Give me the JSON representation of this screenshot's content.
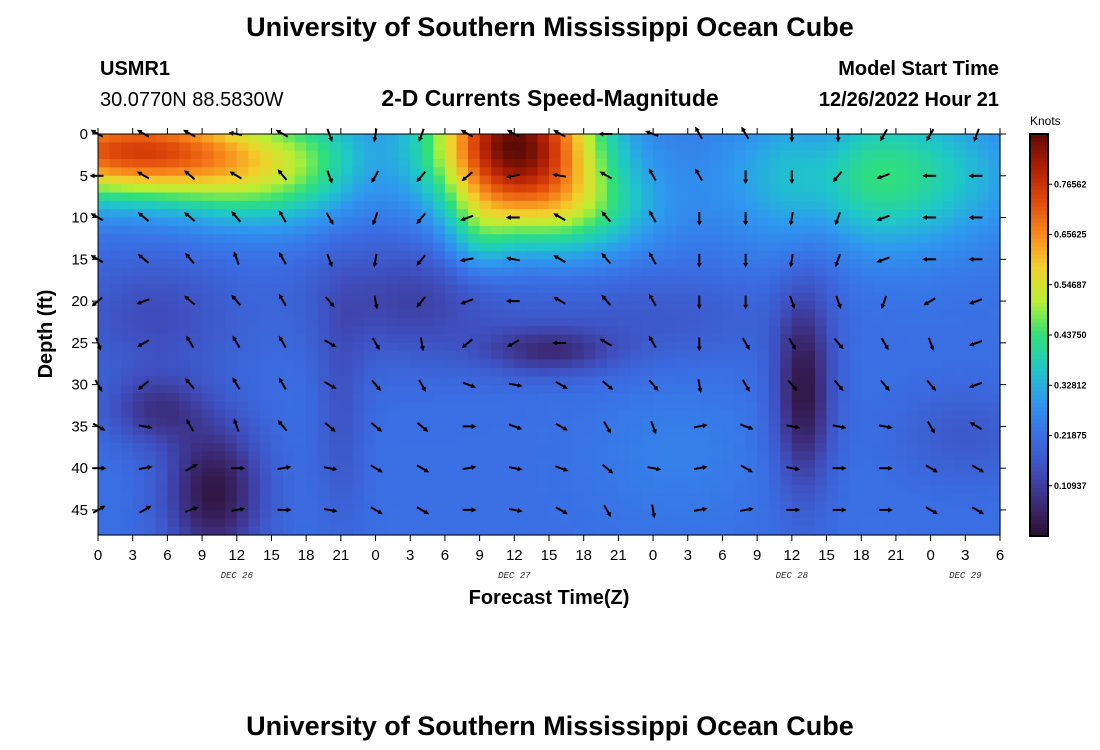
{
  "header": {
    "title": "University of Southern Mississippi Ocean Cube",
    "station_id": "USMR1",
    "coordinates": "30.0770N  88.5830W",
    "plot_title": "2-D Currents Speed-Magnitude",
    "model_start_label": "Model Start Time",
    "model_start_value": "12/26/2022 Hour 21"
  },
  "footer": {
    "title": "University of Southern Mississippi Ocean Cube"
  },
  "colors": {
    "scale": [
      "#2c0f30",
      "#3d2b7a",
      "#3f4fbf",
      "#3a6fe4",
      "#2f97f0",
      "#1ec8c8",
      "#2fe07a",
      "#b7f033",
      "#f2d12c",
      "#f98a1c",
      "#e04a0a",
      "#b01e04",
      "#5d0b05"
    ],
    "arrow": "#000000"
  },
  "chart_data": {
    "type": "heatmap",
    "title": "2-D Currents Speed-Magnitude",
    "xlabel": "Forecast Time(Z)",
    "ylabel": "Depth (ft)",
    "x_unit": "forecast hours from 12/26/2022 00Z",
    "xlim": [
      0,
      78
    ],
    "ylim": [
      48,
      0
    ],
    "x_ticks": [
      0,
      3,
      6,
      9,
      12,
      15,
      18,
      21,
      24,
      27,
      30,
      33,
      36,
      39,
      42,
      45,
      48,
      51,
      54,
      57,
      60,
      63,
      66,
      69,
      72,
      75,
      78
    ],
    "x_tick_labels": [
      "0",
      "3",
      "6",
      "9",
      "12",
      "15",
      "18",
      "21",
      "0",
      "3",
      "6",
      "9",
      "12",
      "15",
      "18",
      "21",
      "0",
      "3",
      "6",
      "9",
      "12",
      "15",
      "18",
      "21",
      "0",
      "3",
      "6"
    ],
    "day_labels": [
      {
        "label": "DEC 26",
        "x": 12
      },
      {
        "label": "DEC 27",
        "x": 36
      },
      {
        "label": "DEC 28",
        "x": 60
      },
      {
        "label": "DEC 29",
        "x": 75
      }
    ],
    "y_ticks": [
      0,
      5,
      10,
      15,
      20,
      25,
      30,
      35,
      40,
      45
    ],
    "y_tick_labels": [
      "0",
      "5",
      "10",
      "15",
      "20",
      "25",
      "30",
      "35",
      "40",
      "45"
    ],
    "colorbar": {
      "unit": "Knots",
      "min": 0,
      "max": 0.875,
      "ticks": [
        0.10937,
        0.21875,
        0.32812,
        0.4375,
        0.54687,
        0.65625,
        0.76562
      ],
      "tick_labels": [
        "0.10937",
        "0.21875",
        "0.32812",
        "0.43750",
        "0.54687",
        "0.65625",
        "0.76562"
      ]
    },
    "speed_field": {
      "background_knots": 0.22,
      "features": [
        {
          "t": 3,
          "z": 2,
          "st": 9,
          "sz": 4,
          "amp": 0.52
        },
        {
          "t": 14,
          "z": 6,
          "st": 5,
          "sz": 4,
          "amp": 0.15
        },
        {
          "t": 19,
          "z": 2,
          "st": 3,
          "sz": 5,
          "amp": 0.06
        },
        {
          "t": 36,
          "z": 1,
          "st": 5,
          "sz": 6,
          "amp": 0.64
        },
        {
          "t": 41,
          "z": 9,
          "st": 5,
          "sz": 4,
          "amp": 0.18
        },
        {
          "t": 33,
          "z": 12,
          "st": 2,
          "sz": 4,
          "amp": 0.1
        },
        {
          "t": 67,
          "z": 5,
          "st": 8,
          "sz": 6,
          "amp": 0.22
        },
        {
          "t": 27,
          "z": 20,
          "st": 6,
          "sz": 5,
          "amp": -0.1
        },
        {
          "t": 5,
          "z": 22,
          "st": 5,
          "sz": 5,
          "amp": -0.08
        },
        {
          "t": 10,
          "z": 43,
          "st": 3,
          "sz": 6,
          "amp": -0.2
        },
        {
          "t": 5,
          "z": 33,
          "st": 3,
          "sz": 3,
          "amp": -0.12
        },
        {
          "t": 39,
          "z": 26,
          "st": 4,
          "sz": 2,
          "amp": -0.13
        },
        {
          "t": 61,
          "z": 31,
          "st": 1.7,
          "sz": 8,
          "amp": -0.2
        },
        {
          "t": 21,
          "z": 33,
          "st": 1.5,
          "sz": 10,
          "amp": -0.06
        },
        {
          "t": 48,
          "z": 22,
          "st": 8,
          "sz": 4,
          "amp": -0.05
        },
        {
          "t": 63,
          "z": 3,
          "st": 2,
          "sz": 10,
          "amp": -0.05
        },
        {
          "t": 50,
          "z": 38,
          "st": 5,
          "sz": 6,
          "amp": 0.03
        },
        {
          "t": 75,
          "z": 36,
          "st": 4,
          "sz": 4,
          "amp": -0.05
        }
      ]
    },
    "vector_grid": {
      "hours": [
        0,
        4,
        8,
        12,
        16,
        20,
        24,
        28,
        32,
        36,
        40,
        44,
        48,
        52,
        56,
        60,
        64,
        68,
        72,
        76
      ],
      "depths_ft": [
        0,
        5,
        10,
        15,
        20,
        25,
        30,
        35,
        40,
        45
      ],
      "directions_deg": [
        [
          300,
          300,
          300,
          280,
          300,
          160,
          190,
          200,
          300,
          300,
          300,
          270,
          290,
          330,
          330,
          180,
          180,
          210,
          210,
          200
        ],
        [
          270,
          300,
          310,
          300,
          320,
          160,
          210,
          220,
          230,
          260,
          280,
          300,
          330,
          330,
          180,
          180,
          220,
          250,
          270,
          270
        ],
        [
          300,
          310,
          310,
          320,
          330,
          150,
          200,
          220,
          250,
          270,
          300,
          320,
          330,
          180,
          180,
          190,
          200,
          250,
          270,
          270
        ],
        [
          300,
          310,
          320,
          340,
          330,
          160,
          190,
          220,
          260,
          280,
          300,
          320,
          330,
          180,
          180,
          190,
          200,
          250,
          270,
          270
        ],
        [
          230,
          250,
          310,
          320,
          330,
          140,
          170,
          220,
          250,
          270,
          300,
          320,
          330,
          180,
          180,
          160,
          160,
          200,
          240,
          250
        ],
        [
          160,
          240,
          330,
          330,
          330,
          120,
          150,
          170,
          230,
          240,
          270,
          300,
          330,
          180,
          150,
          150,
          140,
          150,
          160,
          250
        ],
        [
          150,
          230,
          320,
          330,
          330,
          120,
          140,
          150,
          110,
          100,
          120,
          130,
          140,
          170,
          150,
          140,
          140,
          140,
          140,
          250
        ],
        [
          120,
          100,
          330,
          340,
          320,
          130,
          130,
          130,
          90,
          110,
          120,
          150,
          160,
          80,
          110,
          100,
          100,
          100,
          150,
          300
        ],
        [
          90,
          80,
          60,
          90,
          80,
          100,
          120,
          120,
          80,
          100,
          110,
          130,
          100,
          80,
          120,
          100,
          90,
          90,
          120,
          120
        ],
        [
          60,
          60,
          70,
          80,
          90,
          100,
          120,
          120,
          90,
          100,
          120,
          150,
          170,
          80,
          80,
          90,
          90,
          90,
          120,
          120
        ]
      ]
    }
  }
}
